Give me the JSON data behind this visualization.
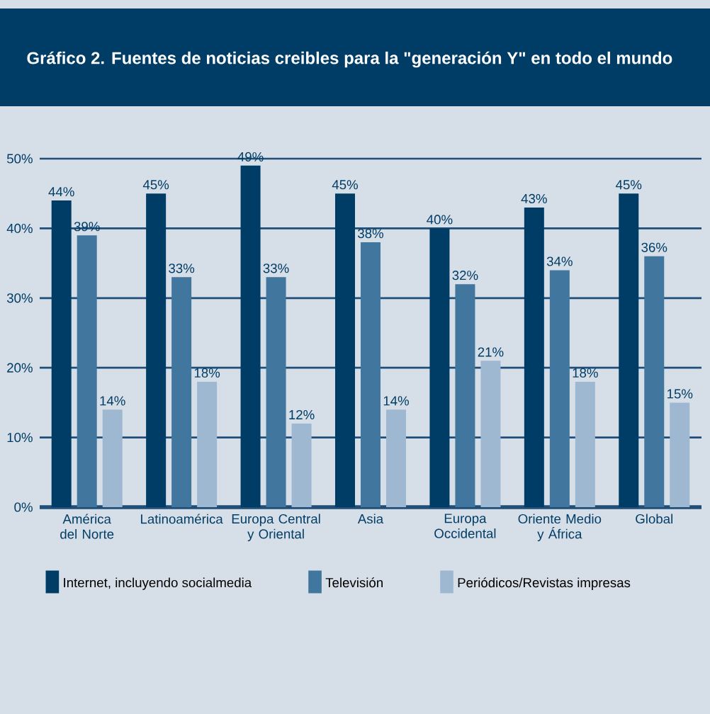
{
  "chart_data": {
    "type": "bar",
    "title": "Gráfico 2. Fuentes de noticias creibles para la \"generación Y\" en todo el mundo",
    "categories": [
      "América del Norte",
      "Latinoamérica",
      "Europa Central y Oriental",
      "Asia",
      "Europa Occidental",
      "Oriente Medio y África",
      "Global"
    ],
    "series": [
      {
        "name": "Internet, incluyendo socialmedia",
        "color": "#003d66",
        "values": [
          44,
          45,
          49,
          45,
          40,
          43,
          45
        ],
        "value_labels": [
          "44%",
          "45%",
          "49%",
          "45%",
          "40%",
          "43%",
          "45%"
        ]
      },
      {
        "name": "Televisión",
        "color": "#41769e",
        "values": [
          39,
          33,
          33,
          38,
          32,
          34,
          36
        ],
        "value_labels": [
          "39%",
          "33%",
          "33%",
          "38%",
          "32%",
          "34%",
          "36%"
        ]
      },
      {
        "name": "Periódicos/Revistas impresas",
        "color": "#9fb8d1",
        "values": [
          14,
          18,
          12,
          14,
          21,
          18,
          15
        ],
        "value_labels": [
          "14%",
          "18%",
          "12%",
          "14%",
          "21%",
          "18%",
          "15%"
        ]
      }
    ],
    "ylim": [
      0,
      50
    ],
    "yticks": [
      {
        "value": 0,
        "label": "0%"
      },
      {
        "value": 10,
        "label": "10%"
      },
      {
        "value": 20,
        "label": "20%"
      },
      {
        "value": 30,
        "label": "30%"
      },
      {
        "value": 40,
        "label": "40%"
      },
      {
        "value": 50,
        "label": "50%"
      }
    ],
    "grid": "y",
    "legend": "bottom"
  }
}
